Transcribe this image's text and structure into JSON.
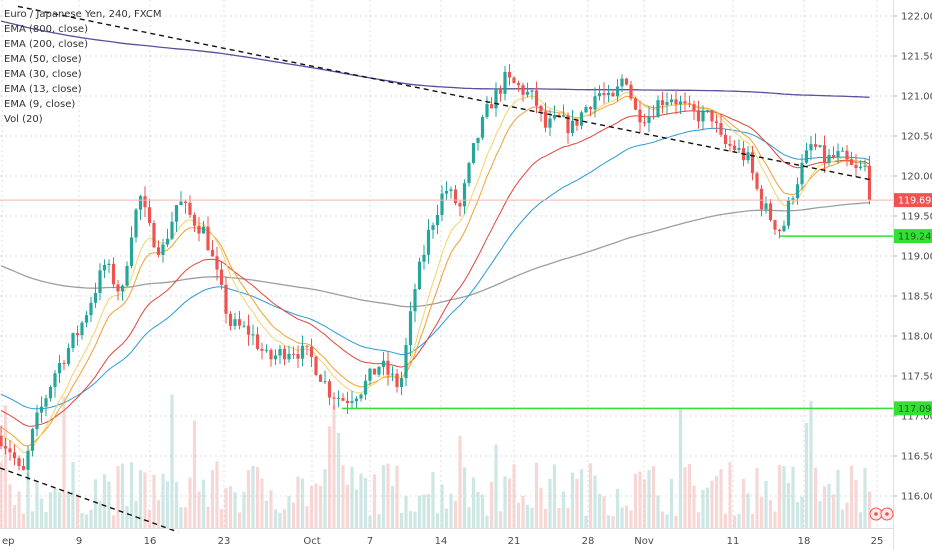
{
  "chart_data": {
    "type": "candlestick",
    "title": "Euro / Japanese Yen, 240, FXCM",
    "indicators": [
      {
        "name": "EMA (800, close)",
        "color": "#5b4fa0"
      },
      {
        "name": "EMA (200, close)",
        "color": "#9e9e9e"
      },
      {
        "name": "EMA (50, close)",
        "color": "#2a9bd6"
      },
      {
        "name": "EMA (30, close)",
        "color": "#e0453a"
      },
      {
        "name": "EMA (13, close)",
        "color": "#f0a030"
      },
      {
        "name": "EMA (9, close)",
        "color": "#f2d36b"
      },
      {
        "name": "Vol (20)",
        "color": "#9e9e9e"
      }
    ],
    "x_ticks": [
      "ep",
      "9",
      "16",
      "23",
      "Oct",
      "7",
      "14",
      "21",
      "28",
      "Nov",
      "11",
      "18",
      "25"
    ],
    "y_ticks": [
      "116.000",
      "116.500",
      "117.000",
      "117.500",
      "118.000",
      "118.500",
      "119.000",
      "119.500",
      "120.000",
      "120.500",
      "121.000",
      "121.500",
      "122.000"
    ],
    "ylim": [
      115.6,
      122.2
    ],
    "price_path": [
      [
        0,
        116.75
      ],
      [
        12,
        116.55
      ],
      [
        22,
        116.2
      ],
      [
        34,
        116.85
      ],
      [
        55,
        117.55
      ],
      [
        80,
        118.1
      ],
      [
        105,
        118.9
      ],
      [
        122,
        118.5
      ],
      [
        130,
        119.25
      ],
      [
        140,
        119.75
      ],
      [
        150,
        119.3
      ],
      [
        162,
        119.05
      ],
      [
        178,
        119.7
      ],
      [
        190,
        119.5
      ],
      [
        205,
        119.3
      ],
      [
        218,
        118.7
      ],
      [
        230,
        118.15
      ],
      [
        250,
        118.05
      ],
      [
        268,
        117.7
      ],
      [
        290,
        117.85
      ],
      [
        310,
        117.75
      ],
      [
        330,
        117.3
      ],
      [
        345,
        117.2
      ],
      [
        362,
        117.35
      ],
      [
        380,
        117.65
      ],
      [
        400,
        117.35
      ],
      [
        415,
        118.6
      ],
      [
        430,
        119.35
      ],
      [
        445,
        119.85
      ],
      [
        460,
        119.6
      ],
      [
        475,
        120.4
      ],
      [
        490,
        120.9
      ],
      [
        505,
        121.2
      ],
      [
        520,
        121.1
      ],
      [
        535,
        120.95
      ],
      [
        545,
        120.6
      ],
      [
        558,
        120.7
      ],
      [
        572,
        120.6
      ],
      [
        585,
        120.85
      ],
      [
        598,
        121.05
      ],
      [
        612,
        120.9
      ],
      [
        625,
        121.3
      ],
      [
        635,
        120.8
      ],
      [
        648,
        120.75
      ],
      [
        660,
        120.95
      ],
      [
        672,
        121.0
      ],
      [
        688,
        120.8
      ],
      [
        700,
        120.75
      ],
      [
        712,
        120.75
      ],
      [
        722,
        120.4
      ],
      [
        735,
        120.35
      ],
      [
        748,
        120.2
      ],
      [
        760,
        119.7
      ],
      [
        772,
        119.45
      ],
      [
        782,
        119.3
      ],
      [
        790,
        119.7
      ],
      [
        800,
        120.05
      ],
      [
        812,
        120.4
      ],
      [
        825,
        120.2
      ],
      [
        840,
        120.25
      ],
      [
        855,
        120.05
      ],
      [
        865,
        120.1
      ],
      [
        872,
        119.698
      ]
    ],
    "trendlines": [
      {
        "from": [
          18,
          122.12
        ],
        "to": [
          872,
          119.95
        ],
        "style": "dashed"
      },
      {
        "from": [
          0,
          116.35
        ],
        "to": [
          178,
          115.55
        ],
        "style": "dashed"
      }
    ],
    "support_lines": [
      {
        "y": 117.096,
        "x_start": 342,
        "label": "117.096"
      },
      {
        "y": 119.249,
        "x_start": 780,
        "label": "119.249"
      }
    ],
    "last_price": {
      "y": 119.698,
      "label": "119.698"
    },
    "grid": true,
    "legend_position": "top-left"
  },
  "colors": {
    "up": "#26a69a",
    "down": "#ef5350",
    "support": "#35e035",
    "last_price": "#ef5350",
    "grid": "#d8dde6",
    "axis_border": "#e0e0e0"
  }
}
